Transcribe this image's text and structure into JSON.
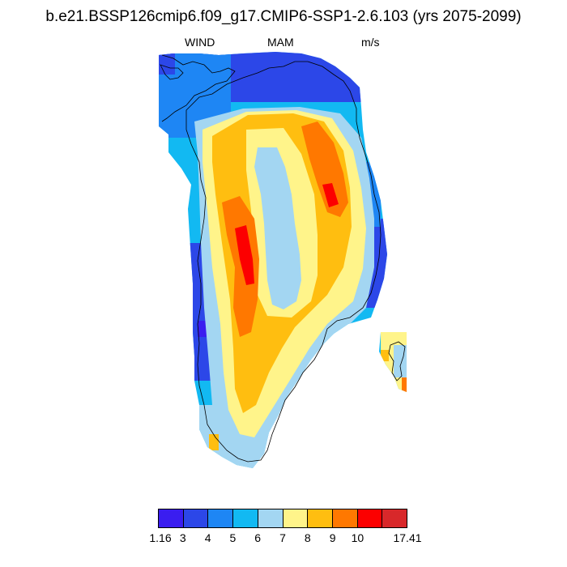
{
  "title": "b.e21.BSSP126cmip6.f09_g17.CMIP6-SSP1-2.6.103 (yrs 2075-2099)",
  "variable": "WIND",
  "season": "MAM",
  "units": "m/s",
  "legend": {
    "colors": [
      "#3a1df0",
      "#2c47e8",
      "#1e86f4",
      "#12b9f2",
      "#a3d6f2",
      "#fff48a",
      "#ffbe10",
      "#ff7800",
      "#fc0000",
      "#d8282a"
    ],
    "labels": [
      "1.16",
      "3",
      "4",
      "5",
      "6",
      "7",
      "8",
      "9",
      "10",
      "17.41"
    ]
  }
}
